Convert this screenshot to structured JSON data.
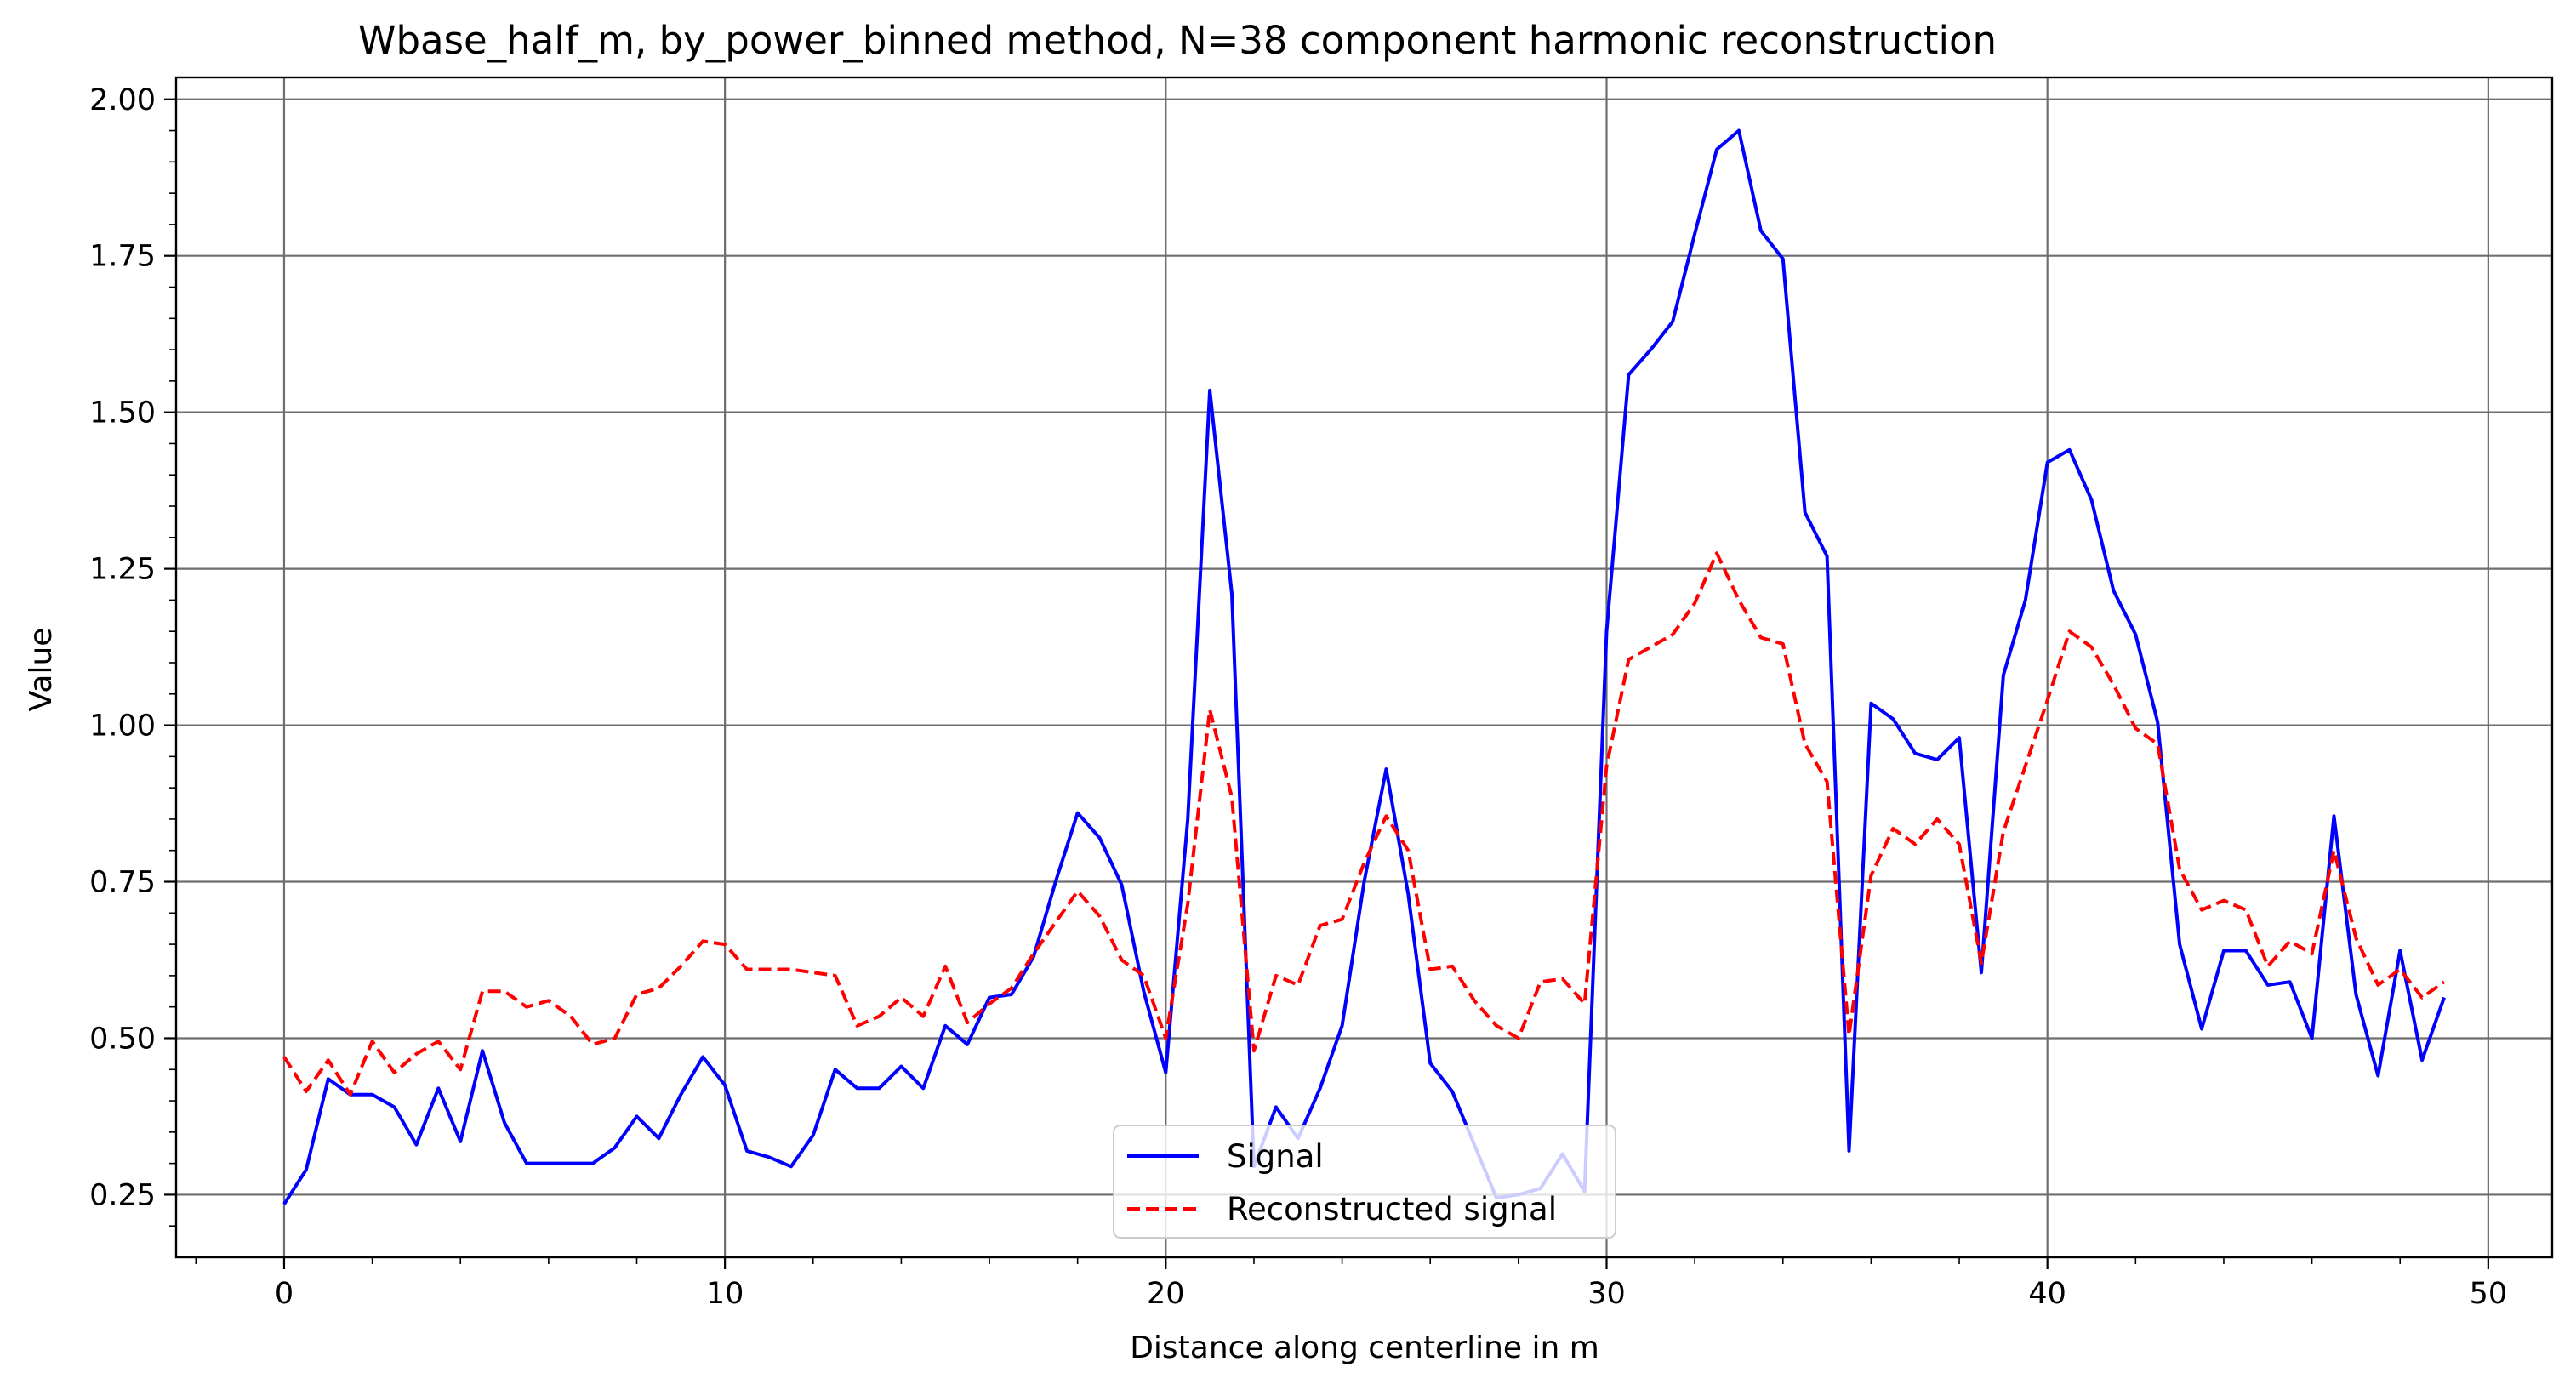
{
  "chart_data": {
    "type": "line",
    "title": "Wbase_half_m, by_power_binned method, N=38 component harmonic reconstruction",
    "xlabel": "Distance along centerline in m",
    "ylabel": "Value",
    "xlim": [
      -2.45,
      51.45
    ],
    "ylim": [
      0.15,
      2.035
    ],
    "xticks": [
      0,
      10,
      20,
      30,
      40,
      50
    ],
    "xtick_labels": [
      "0",
      "10",
      "20",
      "30",
      "40",
      "50"
    ],
    "yticks": [
      0.25,
      0.5,
      0.75,
      1.0,
      1.25,
      1.5,
      1.75,
      2.0
    ],
    "ytick_labels": [
      "0.25",
      "0.50",
      "0.75",
      "1.00",
      "1.25",
      "1.50",
      "1.75",
      "2.00"
    ],
    "grid": true,
    "legend": {
      "position": "lower center"
    },
    "x": [
      0,
      0.5,
      1,
      1.5,
      2,
      2.5,
      3,
      3.5,
      4,
      4.5,
      5,
      5.5,
      6,
      6.5,
      7,
      7.5,
      8,
      8.5,
      9,
      9.5,
      10,
      10.5,
      11,
      11.5,
      12,
      12.5,
      13,
      13.5,
      14,
      14.5,
      15,
      15.5,
      16,
      16.5,
      17,
      17.5,
      18,
      18.5,
      19,
      19.5,
      20,
      20.5,
      21,
      21.5,
      22,
      22.5,
      23,
      23.5,
      24,
      24.5,
      25,
      25.5,
      26,
      26.5,
      27,
      27.5,
      28,
      28.5,
      29,
      29.5,
      30,
      30.5,
      31,
      31.5,
      32,
      32.5,
      33,
      33.5,
      34,
      34.5,
      35,
      35.5,
      36,
      36.5,
      37,
      37.5,
      38,
      38.5,
      39,
      39.5,
      40,
      40.5,
      41,
      41.5,
      42,
      42.5,
      43,
      43.5,
      44,
      44.5,
      45,
      45.5,
      46,
      46.5,
      47,
      47.5,
      48,
      48.5,
      49
    ],
    "series": [
      {
        "name": "Signal",
        "color": "#0000ff",
        "dash": "solid",
        "values": [
          0.235,
          0.29,
          0.435,
          0.41,
          0.41,
          0.39,
          0.33,
          0.42,
          0.335,
          0.48,
          0.365,
          0.3,
          0.3,
          0.3,
          0.3,
          0.325,
          0.375,
          0.34,
          0.41,
          0.47,
          0.425,
          0.32,
          0.31,
          0.295,
          0.345,
          0.45,
          0.42,
          0.42,
          0.455,
          0.42,
          0.52,
          0.49,
          0.565,
          0.57,
          0.63,
          0.75,
          0.86,
          0.82,
          0.745,
          0.575,
          0.445,
          0.85,
          1.535,
          1.21,
          0.295,
          0.39,
          0.34,
          0.42,
          0.52,
          0.75,
          0.93,
          0.73,
          0.46,
          0.415,
          0.33,
          0.245,
          0.25,
          0.26,
          0.315,
          0.255,
          1.15,
          1.56,
          1.6,
          1.645,
          1.785,
          1.92,
          1.95,
          1.79,
          1.745,
          1.34,
          1.27,
          0.32,
          1.035,
          1.01,
          0.955,
          0.945,
          0.98,
          0.605,
          1.08,
          1.2,
          1.42,
          1.44,
          1.36,
          1.215,
          1.145,
          1.005,
          0.65,
          0.515,
          0.64,
          0.64,
          0.585,
          0.59,
          0.5,
          0.855,
          0.57,
          0.44,
          0.64,
          0.465,
          0.565
        ]
      },
      {
        "name": "Reconstructed signal",
        "color": "#ff0000",
        "dash": "dashed",
        "values": [
          0.47,
          0.415,
          0.465,
          0.41,
          0.495,
          0.445,
          0.475,
          0.495,
          0.45,
          0.575,
          0.575,
          0.55,
          0.56,
          0.535,
          0.49,
          0.5,
          0.57,
          0.58,
          0.615,
          0.655,
          0.65,
          0.61,
          0.61,
          0.61,
          0.605,
          0.6,
          0.52,
          0.535,
          0.565,
          0.535,
          0.615,
          0.525,
          0.555,
          0.58,
          0.635,
          0.685,
          0.735,
          0.695,
          0.625,
          0.6,
          0.5,
          0.715,
          1.025,
          0.885,
          0.48,
          0.6,
          0.585,
          0.68,
          0.69,
          0.78,
          0.855,
          0.8,
          0.61,
          0.615,
          0.56,
          0.52,
          0.5,
          0.59,
          0.595,
          0.555,
          0.935,
          1.105,
          1.125,
          1.145,
          1.195,
          1.275,
          1.2,
          1.14,
          1.13,
          0.97,
          0.91,
          0.505,
          0.76,
          0.835,
          0.81,
          0.85,
          0.81,
          0.62,
          0.83,
          0.935,
          1.04,
          1.15,
          1.125,
          1.065,
          0.995,
          0.97,
          0.77,
          0.705,
          0.72,
          0.705,
          0.615,
          0.655,
          0.635,
          0.8,
          0.66,
          0.585,
          0.61,
          0.565,
          0.59
        ]
      }
    ]
  }
}
